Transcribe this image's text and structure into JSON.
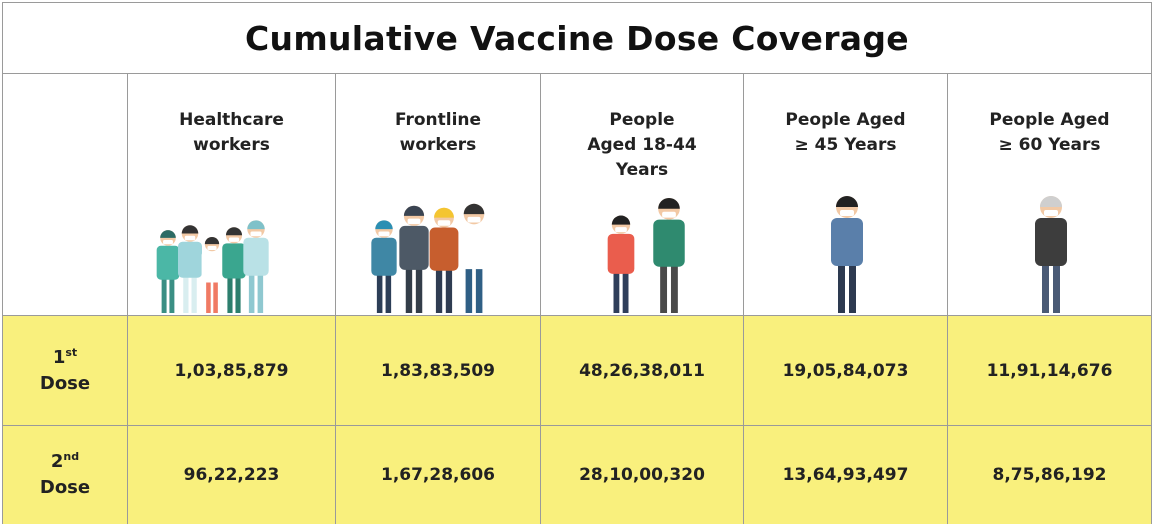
{
  "title": "Cumulative Vaccine Dose Coverage",
  "table": {
    "columns": [
      [
        "Healthcare",
        "workers"
      ],
      [
        "Frontline",
        "workers"
      ],
      [
        "People",
        "Aged 18-44",
        "Years"
      ],
      [
        "People Aged",
        "≥ 45 Years"
      ],
      [
        "People Aged",
        "≥ 60 Years"
      ]
    ],
    "rows": [
      {
        "label": {
          "number": "1",
          "suffix": "st",
          "word": "Dose"
        },
        "cells": [
          "1,03,85,879",
          "1,83,83,509",
          "48,26,38,011",
          "19,05,84,073",
          "11,91,14,676"
        ]
      },
      {
        "label": {
          "number": "2",
          "suffix": "nd",
          "word": "Dose"
        },
        "cells": [
          "96,22,223",
          "1,67,28,606",
          "28,10,00,320",
          "13,64,93,497",
          "8,75,86,192"
        ]
      }
    ]
  }
}
